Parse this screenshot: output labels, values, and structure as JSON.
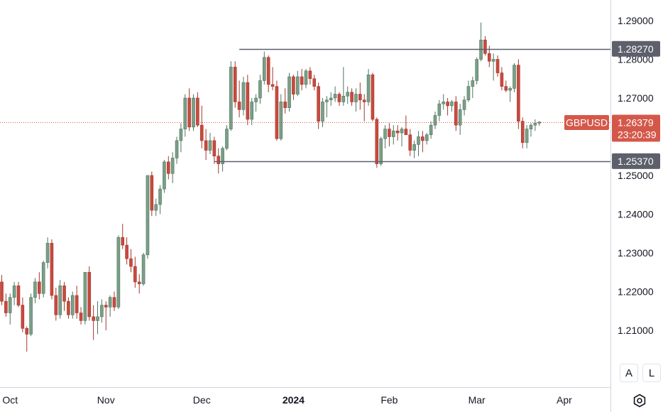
{
  "chart_data": {
    "type": "candlestick",
    "symbol": "GBPUSD",
    "last_price": "1.26379",
    "countdown": "23:20:39",
    "ylim": [
      1.2,
      1.295
    ],
    "y_ticks": [
      "1.29000",
      "1.28000",
      "1.27000",
      "1.25000",
      "1.24000",
      "1.23000",
      "1.22000",
      "1.21000"
    ],
    "x_ticks": [
      {
        "label": "Oct",
        "index": 2,
        "bold": false
      },
      {
        "label": "Nov",
        "index": 25,
        "bold": false
      },
      {
        "label": "Dec",
        "index": 48,
        "bold": false
      },
      {
        "label": "2024",
        "index": 70,
        "bold": true
      },
      {
        "label": "Feb",
        "index": 93,
        "bold": false
      },
      {
        "label": "Mar",
        "index": 114,
        "bold": false
      },
      {
        "label": "Apr",
        "index": 135,
        "bold": false
      }
    ],
    "levels": [
      {
        "label": "1.28270",
        "price": 1.2827,
        "start_index": 57
      },
      {
        "label": "1.25370",
        "price": 1.2537,
        "start_index": 51
      }
    ],
    "candles": [
      [
        1.2225,
        1.2243,
        1.2165,
        1.2175
      ],
      [
        1.2175,
        1.2195,
        1.2135,
        1.2145
      ],
      [
        1.2145,
        1.2195,
        1.2115,
        1.2185
      ],
      [
        1.2185,
        1.2225,
        1.2165,
        1.2215
      ],
      [
        1.2215,
        1.2225,
        1.216,
        1.2165
      ],
      [
        1.2165,
        1.2185,
        1.2095,
        1.2105
      ],
      [
        1.2105,
        1.211,
        1.2045,
        1.209
      ],
      [
        1.209,
        1.2195,
        1.2085,
        1.2185
      ],
      [
        1.2185,
        1.2235,
        1.217,
        1.2225
      ],
      [
        1.2225,
        1.225,
        1.218,
        1.2195
      ],
      [
        1.2195,
        1.228,
        1.2185,
        1.2275
      ],
      [
        1.2275,
        1.234,
        1.226,
        1.2325
      ],
      [
        1.2325,
        1.2335,
        1.218,
        1.219
      ],
      [
        1.219,
        1.221,
        1.2125,
        1.214
      ],
      [
        1.214,
        1.223,
        1.213,
        1.2215
      ],
      [
        1.2215,
        1.2225,
        1.215,
        1.2175
      ],
      [
        1.2175,
        1.2185,
        1.213,
        1.214
      ],
      [
        1.214,
        1.22,
        1.213,
        1.219
      ],
      [
        1.219,
        1.2215,
        1.213,
        1.2145
      ],
      [
        1.2145,
        1.216,
        1.2115,
        1.2125
      ],
      [
        1.2125,
        1.225,
        1.2115,
        1.225
      ],
      [
        1.225,
        1.2265,
        1.2125,
        1.2135
      ],
      [
        1.2135,
        1.2165,
        1.2075,
        1.2125
      ],
      [
        1.2125,
        1.2175,
        1.209,
        1.2135
      ],
      [
        1.2135,
        1.218,
        1.212,
        1.2165
      ],
      [
        1.2165,
        1.2175,
        1.21,
        1.216
      ],
      [
        1.216,
        1.219,
        1.2135,
        1.2185
      ],
      [
        1.2185,
        1.22,
        1.215,
        1.216
      ],
      [
        1.216,
        1.2345,
        1.2155,
        1.234
      ],
      [
        1.234,
        1.2375,
        1.231,
        1.232
      ],
      [
        1.232,
        1.234,
        1.227,
        1.2285
      ],
      [
        1.2285,
        1.231,
        1.225,
        1.2265
      ],
      [
        1.2265,
        1.229,
        1.221,
        1.2225
      ],
      [
        1.2225,
        1.2245,
        1.2195,
        1.222
      ],
      [
        1.222,
        1.23,
        1.2215,
        1.2295
      ],
      [
        1.2295,
        1.25,
        1.2285,
        1.25
      ],
      [
        1.25,
        1.251,
        1.2395,
        1.241
      ],
      [
        1.241,
        1.244,
        1.2395,
        1.2425
      ],
      [
        1.2425,
        1.2475,
        1.24,
        1.2465
      ],
      [
        1.2465,
        1.254,
        1.2455,
        1.2535
      ],
      [
        1.2535,
        1.255,
        1.249,
        1.2505
      ],
      [
        1.2505,
        1.256,
        1.248,
        1.2545
      ],
      [
        1.2545,
        1.26,
        1.253,
        1.259
      ],
      [
        1.259,
        1.2635,
        1.256,
        1.262
      ],
      [
        1.262,
        1.271,
        1.26,
        1.27
      ],
      [
        1.27,
        1.2725,
        1.2615,
        1.2625
      ],
      [
        1.2625,
        1.271,
        1.2615,
        1.27
      ],
      [
        1.27,
        1.2715,
        1.2625,
        1.263
      ],
      [
        1.263,
        1.268,
        1.257,
        1.259
      ],
      [
        1.259,
        1.262,
        1.254,
        1.2565
      ],
      [
        1.2565,
        1.261,
        1.2555,
        1.259
      ],
      [
        1.259,
        1.26,
        1.253,
        1.255
      ],
      [
        1.255,
        1.257,
        1.2505,
        1.253
      ],
      [
        1.253,
        1.2575,
        1.251,
        1.257
      ],
      [
        1.257,
        1.263,
        1.2565,
        1.262
      ],
      [
        1.262,
        1.2795,
        1.2615,
        1.278
      ],
      [
        1.278,
        1.2795,
        1.2675,
        1.269
      ],
      [
        1.269,
        1.2745,
        1.265,
        1.267
      ],
      [
        1.267,
        1.2755,
        1.2655,
        1.274
      ],
      [
        1.274,
        1.276,
        1.263,
        1.2645
      ],
      [
        1.2645,
        1.27,
        1.263,
        1.269
      ],
      [
        1.269,
        1.271,
        1.2665,
        1.27
      ],
      [
        1.27,
        1.276,
        1.2685,
        1.2745
      ],
      [
        1.2745,
        1.282,
        1.2735,
        1.2805
      ],
      [
        1.2805,
        1.281,
        1.2715,
        1.2735
      ],
      [
        1.2735,
        1.278,
        1.272,
        1.273
      ],
      [
        1.273,
        1.2745,
        1.259,
        1.2595
      ],
      [
        1.2595,
        1.271,
        1.259,
        1.269
      ],
      [
        1.269,
        1.2725,
        1.266,
        1.2675
      ],
      [
        1.2675,
        1.2765,
        1.2665,
        1.2755
      ],
      [
        1.2755,
        1.276,
        1.2695,
        1.271
      ],
      [
        1.271,
        1.277,
        1.2705,
        1.2755
      ],
      [
        1.2755,
        1.2775,
        1.272,
        1.2735
      ],
      [
        1.2735,
        1.2775,
        1.2725,
        1.277
      ],
      [
        1.277,
        1.278,
        1.2735,
        1.275
      ],
      [
        1.275,
        1.276,
        1.272,
        1.273
      ],
      [
        1.273,
        1.274,
        1.262,
        1.264
      ],
      [
        1.264,
        1.27,
        1.2625,
        1.269
      ],
      [
        1.269,
        1.2705,
        1.265,
        1.2695
      ],
      [
        1.2695,
        1.2715,
        1.268,
        1.27
      ],
      [
        1.27,
        1.273,
        1.269,
        1.271
      ],
      [
        1.271,
        1.2715,
        1.268,
        1.269
      ],
      [
        1.269,
        1.278,
        1.268,
        1.2705
      ],
      [
        1.2705,
        1.273,
        1.2685,
        1.2715
      ],
      [
        1.2715,
        1.2725,
        1.268,
        1.269
      ],
      [
        1.269,
        1.2725,
        1.2665,
        1.271
      ],
      [
        1.271,
        1.274,
        1.267,
        1.2695
      ],
      [
        1.2695,
        1.271,
        1.264,
        1.269
      ],
      [
        1.269,
        1.2775,
        1.268,
        1.276
      ],
      [
        1.276,
        1.2765,
        1.264,
        1.2645
      ],
      [
        1.2645,
        1.265,
        1.252,
        1.253
      ],
      [
        1.253,
        1.26,
        1.2525,
        1.2595
      ],
      [
        1.2595,
        1.263,
        1.257,
        1.262
      ],
      [
        1.262,
        1.2635,
        1.2575,
        1.26
      ],
      [
        1.26,
        1.263,
        1.258,
        1.2615
      ],
      [
        1.2615,
        1.263,
        1.259,
        1.261
      ],
      [
        1.261,
        1.2625,
        1.2575,
        1.262
      ],
      [
        1.262,
        1.2655,
        1.261,
        1.2605
      ],
      [
        1.2605,
        1.262,
        1.255,
        1.2565
      ],
      [
        1.2565,
        1.259,
        1.2545,
        1.258
      ],
      [
        1.258,
        1.2615,
        1.255,
        1.26
      ],
      [
        1.26,
        1.2615,
        1.256,
        1.259
      ],
      [
        1.259,
        1.261,
        1.258,
        1.2605
      ],
      [
        1.2605,
        1.264,
        1.2595,
        1.263
      ],
      [
        1.263,
        1.2665,
        1.262,
        1.2655
      ],
      [
        1.2655,
        1.2695,
        1.264,
        1.2685
      ],
      [
        1.2685,
        1.271,
        1.267,
        1.269
      ],
      [
        1.269,
        1.27,
        1.2655,
        1.268
      ],
      [
        1.268,
        1.2695,
        1.2665,
        1.269
      ],
      [
        1.269,
        1.2705,
        1.2615,
        1.263
      ],
      [
        1.263,
        1.2685,
        1.2605,
        1.267
      ],
      [
        1.267,
        1.2705,
        1.2655,
        1.2695
      ],
      [
        1.2695,
        1.2745,
        1.269,
        1.273
      ],
      [
        1.273,
        1.2755,
        1.27,
        1.2745
      ],
      [
        1.2745,
        1.2805,
        1.2735,
        1.28
      ],
      [
        1.28,
        1.2895,
        1.2795,
        1.285
      ],
      [
        1.285,
        1.286,
        1.281,
        1.2815
      ],
      [
        1.2815,
        1.2835,
        1.278,
        1.2795
      ],
      [
        1.2795,
        1.2815,
        1.2745,
        1.28
      ],
      [
        1.28,
        1.281,
        1.2755,
        1.2765
      ],
      [
        1.2765,
        1.278,
        1.272,
        1.273
      ],
      [
        1.273,
        1.2745,
        1.2715,
        1.272
      ],
      [
        1.272,
        1.273,
        1.269,
        1.2725
      ],
      [
        1.2725,
        1.279,
        1.2715,
        1.2785
      ],
      [
        1.2785,
        1.28,
        1.262,
        1.264
      ],
      [
        1.264,
        1.265,
        1.257,
        1.2585
      ],
      [
        1.2585,
        1.263,
        1.257,
        1.262
      ],
      [
        1.262,
        1.2635,
        1.26,
        1.263
      ],
      [
        1.263,
        1.2645,
        1.2615,
        1.2635
      ],
      [
        1.2635,
        1.264,
        1.2628,
        1.2638
      ]
    ]
  },
  "colors": {
    "up": "#7a9f87",
    "down": "#c84a3f",
    "up_border": "#4f7561",
    "down_border": "#a3372d",
    "level_line": "#5d606b",
    "price_line": "#d4584a",
    "grid_axis": "#d1d4dc"
  },
  "buttons": {
    "auto_label": "A",
    "log_label": "L"
  },
  "icons": {
    "settings": "gear-icon"
  }
}
